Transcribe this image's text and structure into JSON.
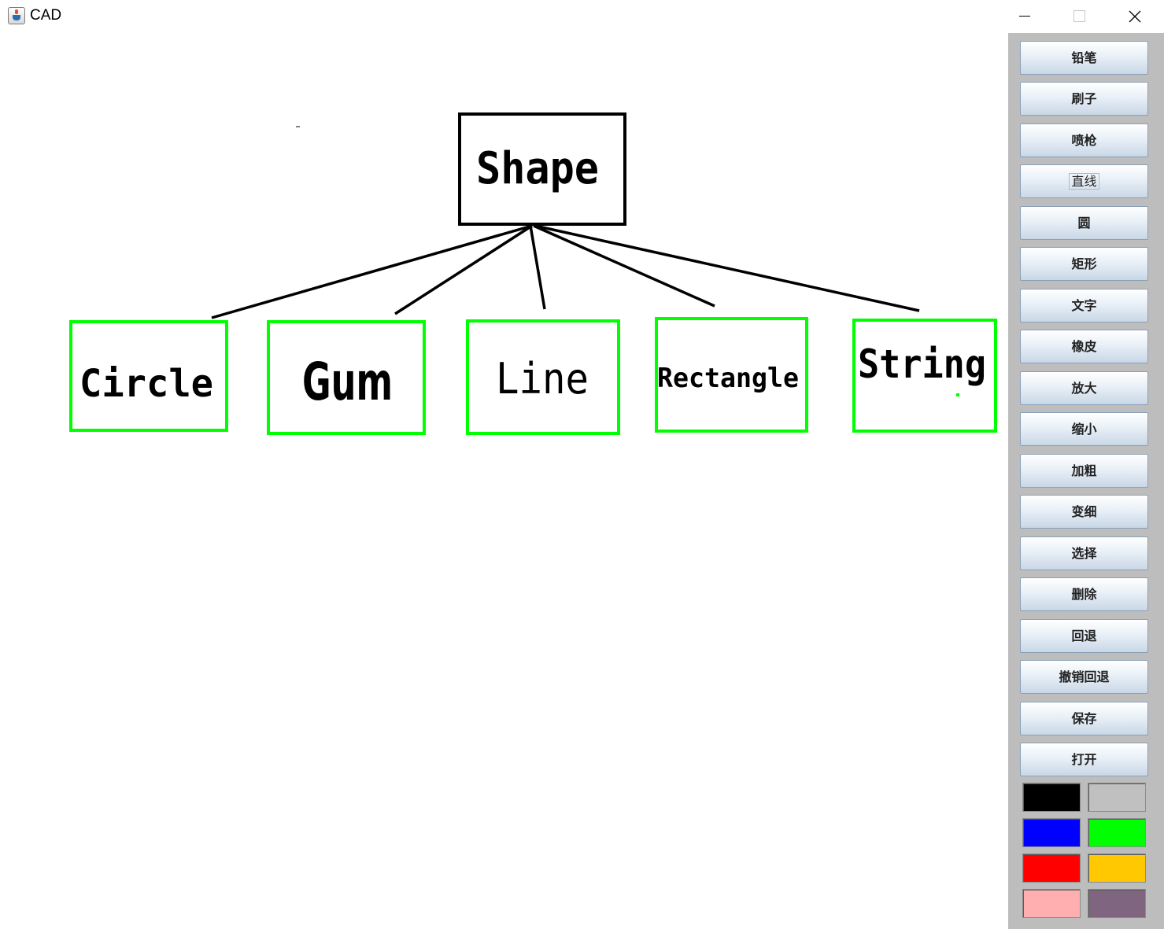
{
  "window": {
    "title": "CAD",
    "app_icon": "java-cup-icon",
    "controls": [
      "minimize-icon",
      "maximize-icon",
      "close-icon"
    ]
  },
  "canvas": {
    "root_label": "Shape",
    "child_labels": [
      "Circle",
      "Gum",
      "Line",
      "Rectangle",
      "String"
    ],
    "colors": {
      "root_border": "#000000",
      "child_border": "#00ff00",
      "connector": "#000000",
      "text": "#000000"
    }
  },
  "toolbar": {
    "buttons": [
      "铅笔",
      "刷子",
      "喷枪",
      "直线",
      "圆",
      "矩形",
      "文字",
      "橡皮",
      "放大",
      "缩小",
      "加粗",
      "变细",
      "选择",
      "删除",
      "回退",
      "撤销回退",
      "保存",
      "打开"
    ],
    "focused_button": "直线",
    "swatches": [
      "#000000",
      "#c0c0c0",
      "#0000ff",
      "#00ff00",
      "#ff0000",
      "#ffc800",
      "#ffafaf",
      "#7f6580"
    ]
  }
}
